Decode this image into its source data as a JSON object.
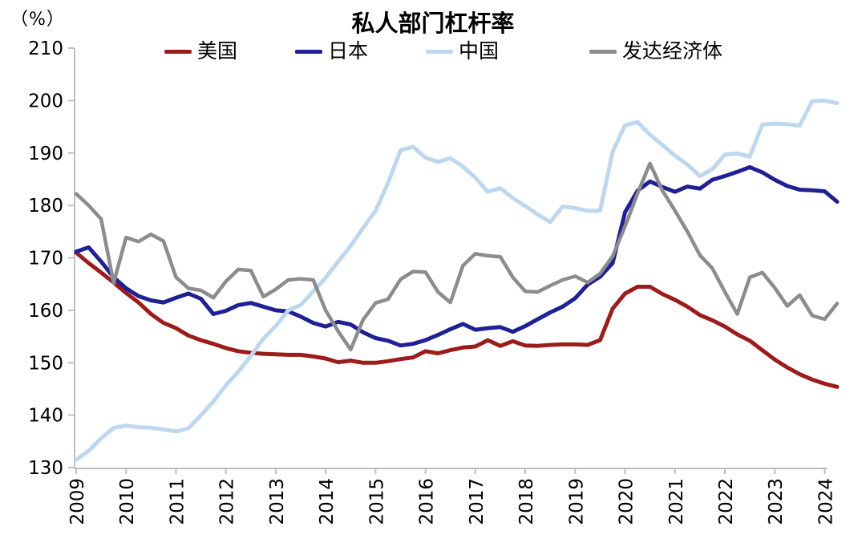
{
  "chart_data": {
    "type": "line",
    "title": "私人部门杠杆率",
    "unit_label": "（%）",
    "xlabel": "",
    "ylabel": "%",
    "ylim": [
      130,
      210
    ],
    "ytick_step": 10,
    "yticks": [
      130,
      140,
      150,
      160,
      170,
      180,
      190,
      200,
      210
    ],
    "xtick_labels": [
      "2009",
      "2010",
      "2011",
      "2012",
      "2013",
      "2014",
      "2015",
      "2016",
      "2017",
      "2018",
      "2019",
      "2020",
      "2021",
      "2022",
      "2023",
      "2024"
    ],
    "frequency": "quarterly, 2009Q1 - 2024Q2",
    "grid": false,
    "legend_position": "top",
    "axis_color": "#BFBFBF",
    "text_color": "#000000",
    "background_color": "#FFFFFF",
    "series": [
      {
        "name": "美国",
        "color": "#9E1B1B",
        "line_width": 5,
        "values": [
          171.0,
          169.0,
          167.2,
          165.3,
          163.3,
          161.5,
          159.3,
          157.6,
          156.6,
          155.2,
          154.3,
          153.6,
          152.8,
          152.2,
          151.9,
          151.7,
          151.6,
          151.5,
          151.5,
          151.2,
          150.8,
          150.1,
          150.4,
          150.0,
          150.0,
          150.3,
          150.7,
          151.0,
          152.2,
          151.8,
          152.4,
          152.9,
          153.1,
          154.3,
          153.2,
          154.1,
          153.3,
          153.2,
          153.4,
          153.5,
          153.5,
          153.4,
          154.3,
          160.3,
          163.2,
          164.5,
          164.5,
          163.1,
          162.0,
          160.7,
          159.1,
          158.1,
          156.9,
          155.4,
          154.2,
          152.4,
          150.6,
          149.1,
          147.8,
          146.8,
          146.0,
          145.4
        ]
      },
      {
        "name": "日本",
        "color": "#1F1F96",
        "line_width": 5,
        "values": [
          171.2,
          172.0,
          169.3,
          166.3,
          164.2,
          162.7,
          161.9,
          161.5,
          162.4,
          163.2,
          162.2,
          159.3,
          159.9,
          161.0,
          161.4,
          160.7,
          160.0,
          159.8,
          158.8,
          157.6,
          156.9,
          157.8,
          157.3,
          155.8,
          154.7,
          154.2,
          153.3,
          153.6,
          154.3,
          155.3,
          156.4,
          157.4,
          156.3,
          156.6,
          156.8,
          155.9,
          157.0,
          158.3,
          159.6,
          160.7,
          162.3,
          164.9,
          166.4,
          169.0,
          178.7,
          182.8,
          184.6,
          183.5,
          182.6,
          183.6,
          183.2,
          184.9,
          185.6,
          186.4,
          187.3,
          186.3,
          184.9,
          183.7,
          183.0,
          182.9,
          182.7,
          180.7
        ]
      },
      {
        "name": "中国",
        "color": "#BDD7EE",
        "line_width": 5,
        "values": [
          131.5,
          133.2,
          135.6,
          137.6,
          138.0,
          137.7,
          137.6,
          137.3,
          136.9,
          137.5,
          140.0,
          142.6,
          145.7,
          148.3,
          151.3,
          154.6,
          157.0,
          160.0,
          161.0,
          163.6,
          166.2,
          169.3,
          172.3,
          175.7,
          179.0,
          184.3,
          190.5,
          191.2,
          189.1,
          188.3,
          189.0,
          187.4,
          185.3,
          182.6,
          183.3,
          181.4,
          179.9,
          178.3,
          176.8,
          179.8,
          179.5,
          179.0,
          179.0,
          190.2,
          195.3,
          195.9,
          193.5,
          191.5,
          189.5,
          187.8,
          185.6,
          186.9,
          189.7,
          189.9,
          189.3,
          195.4,
          195.6,
          195.5,
          195.2,
          199.9,
          200.0,
          199.5
        ]
      },
      {
        "name": "发达经济体",
        "color": "#8C8C8C",
        "line_width": 4.5,
        "values": [
          182.2,
          180.0,
          177.4,
          165.2,
          173.9,
          173.1,
          174.5,
          173.2,
          166.3,
          164.2,
          163.8,
          162.4,
          165.5,
          167.8,
          167.6,
          162.6,
          164.0,
          165.8,
          166.0,
          165.8,
          160.0,
          156.0,
          152.5,
          158.2,
          161.4,
          162.1,
          165.9,
          167.4,
          167.3,
          163.5,
          161.5,
          168.5,
          170.8,
          170.4,
          170.2,
          166.3,
          163.6,
          163.5,
          164.7,
          165.8,
          166.5,
          165.3,
          167.0,
          170.3,
          176.0,
          182.3,
          188.0,
          182.8,
          179.0,
          175.0,
          170.5,
          168.0,
          163.5,
          159.3,
          166.3,
          167.2,
          164.3,
          160.8,
          162.9,
          159.0,
          158.3,
          161.3
        ]
      }
    ]
  }
}
